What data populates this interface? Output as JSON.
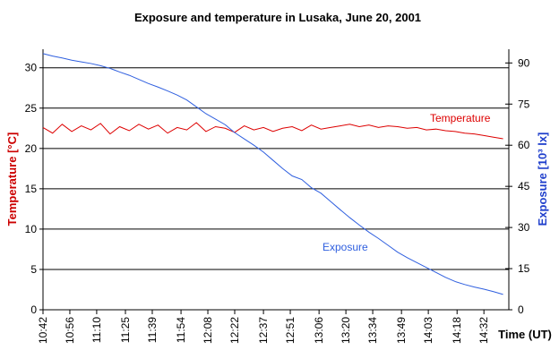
{
  "chart_data": {
    "type": "line",
    "title": "Exposure and temperature in Lusaka, June 20, 2001",
    "xlabel": "Time (UT)",
    "ylabel": "Temperature [°C]",
    "y2label": "Exposure [10³ lx]",
    "ylabel_color": "#cc0000",
    "y2label_color": "#1f3fcc",
    "grid": true,
    "xlim": [
      642,
      885
    ],
    "xticks": [
      {
        "value": 642,
        "label": "10:42"
      },
      {
        "value": 656,
        "label": "10:56"
      },
      {
        "value": 670,
        "label": "11:10"
      },
      {
        "value": 685,
        "label": "11:25"
      },
      {
        "value": 699,
        "label": "11:39"
      },
      {
        "value": 714,
        "label": "11:54"
      },
      {
        "value": 728,
        "label": "12:08"
      },
      {
        "value": 742,
        "label": "12:22"
      },
      {
        "value": 757,
        "label": "12:37"
      },
      {
        "value": 771,
        "label": "12:51"
      },
      {
        "value": 786,
        "label": "13:06"
      },
      {
        "value": 800,
        "label": "13:20"
      },
      {
        "value": 814,
        "label": "13:34"
      },
      {
        "value": 829,
        "label": "13:49"
      },
      {
        "value": 843,
        "label": "14:03"
      },
      {
        "value": 858,
        "label": "14:18"
      },
      {
        "value": 872,
        "label": "14:32"
      }
    ],
    "ylim": [
      0,
      32.3
    ],
    "yticks": [
      0,
      5,
      10,
      15,
      20,
      25,
      30
    ],
    "y2lim": [
      0,
      95
    ],
    "y2ticks": [
      0,
      15,
      30,
      45,
      60,
      75,
      90
    ],
    "x": [
      642,
      647,
      652,
      657,
      662,
      667,
      672,
      677,
      682,
      687,
      692,
      697,
      702,
      707,
      712,
      717,
      722,
      727,
      732,
      737,
      742,
      747,
      752,
      757,
      762,
      767,
      772,
      777,
      782,
      787,
      792,
      797,
      802,
      807,
      812,
      817,
      822,
      827,
      832,
      837,
      842,
      847,
      852,
      857,
      862,
      867,
      872,
      877,
      882
    ],
    "series": [
      {
        "name": "Temperature",
        "color": "#dd0000",
        "axis": "y",
        "values": [
          22.6,
          21.9,
          23.0,
          22.1,
          22.8,
          22.3,
          23.1,
          21.8,
          22.7,
          22.2,
          23.0,
          22.4,
          22.9,
          21.9,
          22.6,
          22.3,
          23.2,
          22.1,
          22.7,
          22.5,
          22.0,
          22.8,
          22.3,
          22.6,
          22.1,
          22.5,
          22.7,
          22.2,
          22.9,
          22.4,
          22.6,
          22.8,
          23.0,
          22.7,
          22.9,
          22.6,
          22.8,
          22.7,
          22.5,
          22.6,
          22.3,
          22.4,
          22.2,
          22.1,
          21.9,
          21.8,
          21.6,
          21.4,
          21.2
        ]
      },
      {
        "name": "Exposure",
        "color": "#2f5fdf",
        "axis": "y2",
        "values": [
          93.4,
          92.5,
          91.8,
          91.0,
          90.4,
          89.8,
          89.0,
          88.0,
          86.7,
          85.5,
          84.0,
          82.5,
          81.2,
          79.8,
          78.3,
          76.5,
          74.0,
          71.5,
          69.5,
          67.5,
          64.6,
          62.3,
          60.0,
          57.5,
          54.5,
          51.5,
          48.8,
          47.5,
          44.5,
          42.5,
          39.5,
          36.5,
          33.6,
          30.9,
          28.3,
          26.0,
          23.5,
          21.0,
          19.0,
          17.2,
          15.4,
          13.6,
          11.8,
          10.3,
          9.2,
          8.3,
          7.5,
          6.6,
          5.6
        ]
      }
    ]
  }
}
